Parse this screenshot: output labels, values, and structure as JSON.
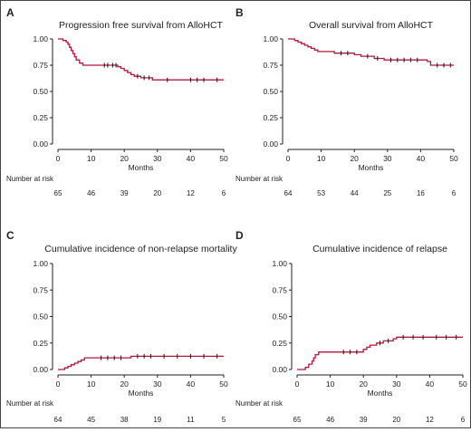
{
  "colors": {
    "curve": "#b5163a",
    "censor": "#111111",
    "axis": "#222222",
    "frame": "#444444"
  },
  "chart_data": [
    {
      "panel": "A",
      "type": "line",
      "step": true,
      "title": "Progression free survival from AlloHCT",
      "xlabel": "Months",
      "ylabel": "",
      "xlim": [
        0,
        50
      ],
      "ylim": [
        0,
        1
      ],
      "xticks": [
        0,
        10,
        20,
        30,
        40,
        50
      ],
      "yticks": [
        "0.00",
        "0.25",
        "0.50",
        "0.75",
        "1.00"
      ],
      "grid": false,
      "series": [
        {
          "points": [
            [
              0,
              1.0
            ],
            [
              1.5,
              1.0
            ],
            [
              1.5,
              0.985
            ],
            [
              2.5,
              0.985
            ],
            [
              2.5,
              0.97
            ],
            [
              3,
              0.97
            ],
            [
              3,
              0.95
            ],
            [
              3.5,
              0.95
            ],
            [
              3.5,
              0.92
            ],
            [
              4,
              0.92
            ],
            [
              4,
              0.89
            ],
            [
              4.5,
              0.89
            ],
            [
              4.5,
              0.86
            ],
            [
              5,
              0.86
            ],
            [
              5,
              0.83
            ],
            [
              5.5,
              0.83
            ],
            [
              5.5,
              0.8
            ],
            [
              6.5,
              0.8
            ],
            [
              6.5,
              0.77
            ],
            [
              7.5,
              0.77
            ],
            [
              7.5,
              0.75
            ],
            [
              18,
              0.75
            ],
            [
              18,
              0.735
            ],
            [
              19,
              0.735
            ],
            [
              19,
              0.72
            ],
            [
              20,
              0.72
            ],
            [
              20,
              0.7
            ],
            [
              21,
              0.7
            ],
            [
              21,
              0.68
            ],
            [
              22,
              0.68
            ],
            [
              22,
              0.66
            ],
            [
              23,
              0.66
            ],
            [
              23,
              0.645
            ],
            [
              25,
              0.645
            ],
            [
              25,
              0.63
            ],
            [
              28.5,
              0.63
            ],
            [
              28.5,
              0.61
            ],
            [
              50,
              0.61
            ]
          ],
          "censor_marks": [
            [
              14,
              0.75
            ],
            [
              15,
              0.75
            ],
            [
              16.5,
              0.75
            ],
            [
              17.5,
              0.75
            ],
            [
              24,
              0.645
            ],
            [
              26,
              0.63
            ],
            [
              27.5,
              0.63
            ],
            [
              33,
              0.61
            ],
            [
              40,
              0.61
            ],
            [
              42,
              0.61
            ],
            [
              44,
              0.61
            ],
            [
              48,
              0.61
            ]
          ]
        }
      ],
      "risk_table": {
        "title": "Number at risk",
        "values": [
          "65",
          "46",
          "39",
          "20",
          "12",
          "6"
        ]
      }
    },
    {
      "panel": "B",
      "type": "line",
      "step": true,
      "title": "Overall survival from AlloHCT",
      "xlabel": "Months",
      "ylabel": "",
      "xlim": [
        0,
        50
      ],
      "ylim": [
        0,
        1
      ],
      "xticks": [
        0,
        10,
        20,
        30,
        40,
        50
      ],
      "yticks": [
        "0.00",
        "0.25",
        "0.50",
        "0.75",
        "1.00"
      ],
      "grid": false,
      "series": [
        {
          "points": [
            [
              0,
              1.0
            ],
            [
              2,
              1.0
            ],
            [
              2,
              0.985
            ],
            [
              3,
              0.985
            ],
            [
              3,
              0.97
            ],
            [
              4,
              0.97
            ],
            [
              4,
              0.955
            ],
            [
              5,
              0.955
            ],
            [
              5,
              0.94
            ],
            [
              6,
              0.94
            ],
            [
              6,
              0.925
            ],
            [
              7,
              0.925
            ],
            [
              7,
              0.91
            ],
            [
              8,
              0.91
            ],
            [
              8,
              0.895
            ],
            [
              9,
              0.895
            ],
            [
              9,
              0.88
            ],
            [
              14,
              0.88
            ],
            [
              14,
              0.865
            ],
            [
              20,
              0.865
            ],
            [
              20,
              0.85
            ],
            [
              22,
              0.85
            ],
            [
              22,
              0.835
            ],
            [
              26,
              0.835
            ],
            [
              26,
              0.815
            ],
            [
              29,
              0.815
            ],
            [
              29,
              0.8
            ],
            [
              42,
              0.8
            ],
            [
              42,
              0.785
            ],
            [
              43,
              0.785
            ],
            [
              43,
              0.75
            ],
            [
              50,
              0.75
            ]
          ],
          "censor_marks": [
            [
              16,
              0.865
            ],
            [
              18,
              0.865
            ],
            [
              24,
              0.835
            ],
            [
              27,
              0.815
            ],
            [
              31,
              0.8
            ],
            [
              33,
              0.8
            ],
            [
              35,
              0.8
            ],
            [
              37,
              0.8
            ],
            [
              39,
              0.8
            ],
            [
              45,
              0.75
            ],
            [
              47,
              0.75
            ],
            [
              49,
              0.75
            ]
          ]
        }
      ],
      "risk_table": {
        "title": "Number at risk",
        "values": [
          "64",
          "53",
          "44",
          "25",
          "16",
          "6"
        ]
      }
    },
    {
      "panel": "C",
      "type": "line",
      "step": true,
      "title": "Cumulative incidence of non-relapse mortality",
      "xlabel": "Months",
      "ylabel": "",
      "xlim": [
        0,
        50
      ],
      "ylim": [
        0,
        1
      ],
      "xticks": [
        0,
        10,
        20,
        30,
        40,
        50
      ],
      "yticks": [
        "0.00",
        "0.25",
        "0.50",
        "0.75",
        "1.00"
      ],
      "grid": false,
      "series": [
        {
          "points": [
            [
              0,
              0.0
            ],
            [
              2,
              0.0
            ],
            [
              2,
              0.015
            ],
            [
              3,
              0.015
            ],
            [
              3,
              0.03
            ],
            [
              4,
              0.03
            ],
            [
              4,
              0.045
            ],
            [
              5,
              0.045
            ],
            [
              5,
              0.06
            ],
            [
              6,
              0.06
            ],
            [
              6,
              0.075
            ],
            [
              7,
              0.075
            ],
            [
              7,
              0.09
            ],
            [
              8,
              0.09
            ],
            [
              8,
              0.11
            ],
            [
              22,
              0.11
            ],
            [
              22,
              0.125
            ],
            [
              50,
              0.125
            ]
          ],
          "censor_marks": [
            [
              13,
              0.11
            ],
            [
              15,
              0.11
            ],
            [
              17,
              0.11
            ],
            [
              19,
              0.11
            ],
            [
              24,
              0.125
            ],
            [
              26,
              0.125
            ],
            [
              28,
              0.125
            ],
            [
              32,
              0.125
            ],
            [
              36,
              0.125
            ],
            [
              40,
              0.125
            ],
            [
              44,
              0.125
            ],
            [
              48,
              0.125
            ]
          ]
        }
      ],
      "risk_table": {
        "title": "Number at risk",
        "values": [
          "64",
          "45",
          "38",
          "19",
          "11",
          "5"
        ]
      }
    },
    {
      "panel": "D",
      "type": "line",
      "step": true,
      "title": "Cumulative incidence of relapse",
      "xlabel": "Months",
      "ylabel": "",
      "xlim": [
        0,
        50
      ],
      "ylim": [
        0,
        1
      ],
      "xticks": [
        0,
        10,
        20,
        30,
        40,
        50
      ],
      "yticks": [
        "0.00",
        "0.25",
        "0.50",
        "0.75",
        "1.00"
      ],
      "grid": false,
      "series": [
        {
          "points": [
            [
              0,
              0.0
            ],
            [
              2.5,
              0.0
            ],
            [
              2.5,
              0.02
            ],
            [
              3.5,
              0.02
            ],
            [
              3.5,
              0.05
            ],
            [
              4.5,
              0.05
            ],
            [
              4.5,
              0.08
            ],
            [
              5,
              0.08
            ],
            [
              5,
              0.11
            ],
            [
              5.5,
              0.11
            ],
            [
              5.5,
              0.14
            ],
            [
              6.5,
              0.14
            ],
            [
              6.5,
              0.165
            ],
            [
              20,
              0.165
            ],
            [
              20,
              0.19
            ],
            [
              21,
              0.19
            ],
            [
              21,
              0.21
            ],
            [
              22,
              0.21
            ],
            [
              22,
              0.23
            ],
            [
              24,
              0.23
            ],
            [
              24,
              0.25
            ],
            [
              26,
              0.25
            ],
            [
              26,
              0.27
            ],
            [
              29,
              0.27
            ],
            [
              29,
              0.29
            ],
            [
              30,
              0.29
            ],
            [
              30,
              0.305
            ],
            [
              50,
              0.305
            ]
          ],
          "censor_marks": [
            [
              14,
              0.165
            ],
            [
              16,
              0.165
            ],
            [
              18,
              0.165
            ],
            [
              25,
              0.25
            ],
            [
              27.5,
              0.27
            ],
            [
              32,
              0.305
            ],
            [
              35,
              0.305
            ],
            [
              38,
              0.305
            ],
            [
              42,
              0.305
            ],
            [
              45,
              0.305
            ],
            [
              48,
              0.305
            ]
          ]
        }
      ],
      "risk_table": {
        "title": "Number at risk",
        "values": [
          "65",
          "46",
          "39",
          "20",
          "12",
          "6"
        ]
      }
    }
  ]
}
